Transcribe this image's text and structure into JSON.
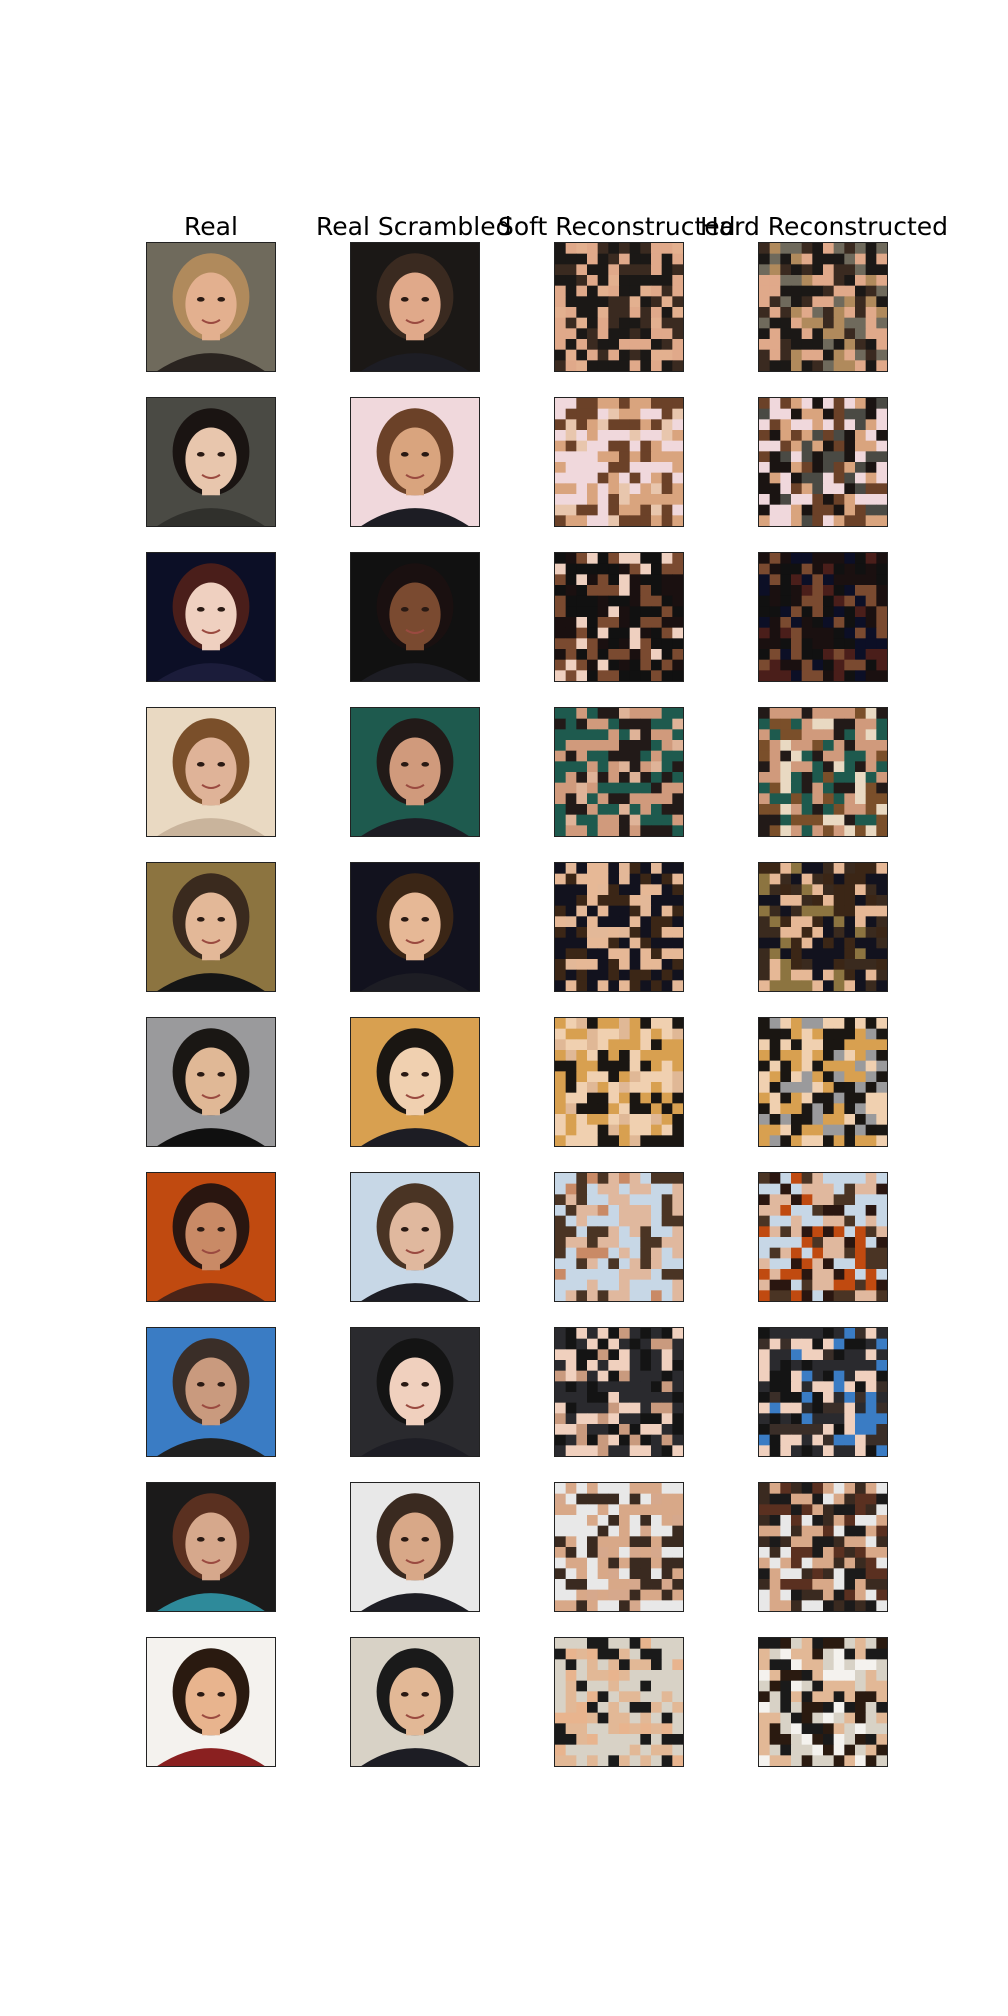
{
  "figure": {
    "column_titles": [
      "Real",
      "Real Scrambled",
      "Soft Reconstructed",
      "Hard Reconstructed"
    ],
    "rows": [
      {
        "bg": "#6f6a5c",
        "skin": "#e3b08f",
        "hair": "#b08a5c",
        "cloth": "#2a2420",
        "scramble_bg": "#1b1816",
        "scramble_skin": "#e0a98a",
        "scramble_hair": "#3a2a20"
      },
      {
        "bg": "#4a4a44",
        "skin": "#e8c6ad",
        "hair": "#1a1412",
        "cloth": "#30302c",
        "scramble_bg": "#f0d8dc",
        "scramble_skin": "#d9a47e",
        "scramble_hair": "#6b4128"
      },
      {
        "bg": "#0c0f26",
        "skin": "#efd0c0",
        "hair": "#4a1e1a",
        "cloth": "#1b1c3a",
        "scramble_bg": "#111111",
        "scramble_skin": "#7a4a30",
        "scramble_hair": "#1a1010"
      },
      {
        "bg": "#e9d9c2",
        "skin": "#dfb398",
        "hair": "#7a4f2a",
        "cloth": "#c9b49c",
        "scramble_bg": "#1e5a4e",
        "scramble_skin": "#d09a7c",
        "scramble_hair": "#221a18"
      },
      {
        "bg": "#8c7440",
        "skin": "#e3b898",
        "hair": "#3a2a1e",
        "cloth": "#151515",
        "scramble_bg": "#12121e",
        "scramble_skin": "#e6b896",
        "scramble_hair": "#3b2616"
      },
      {
        "bg": "#9a9a9c",
        "skin": "#e0b896",
        "hair": "#1a1714",
        "cloth": "#101010",
        "scramble_bg": "#d8a050",
        "scramble_skin": "#f0d0b0",
        "scramble_hair": "#1a1612"
      },
      {
        "bg": "#c04a10",
        "skin": "#c98a66",
        "hair": "#2a1610",
        "cloth": "#4a2418",
        "scramble_bg": "#c7d7e6",
        "scramble_skin": "#e0b89e",
        "scramble_hair": "#4a3424"
      },
      {
        "bg": "#3a7cc4",
        "skin": "#c99a7e",
        "hair": "#3a2e28",
        "cloth": "#202020",
        "scramble_bg": "#2a2a2e",
        "scramble_skin": "#f0d0be",
        "scramble_hair": "#141414"
      },
      {
        "bg": "#1b1a1a",
        "skin": "#d6a88c",
        "hair": "#5a3020",
        "cloth": "#2e8a9a",
        "scramble_bg": "#e8e8e8",
        "scramble_skin": "#d8a888",
        "scramble_hair": "#3a2a20"
      },
      {
        "bg": "#f4f2ee",
        "skin": "#e8b48e",
        "hair": "#2a1a10",
        "cloth": "#8a2020",
        "scramble_bg": "#d8d2c6",
        "scramble_skin": "#e2b896",
        "scramble_hair": "#1a1a1a"
      }
    ]
  }
}
